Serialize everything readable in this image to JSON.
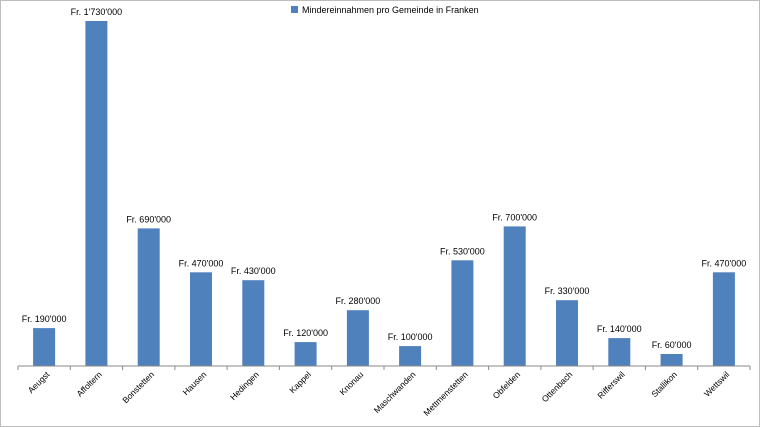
{
  "chart_data": {
    "type": "bar",
    "categories": [
      "Aeugst",
      "Affoltern",
      "Bonstetten",
      "Hausen",
      "Hedingen",
      "Kappel",
      "Knonau",
      "Maschwanden",
      "Mettmenstetten",
      "Obfelden",
      "Ottenbach",
      "Rifferswil",
      "Stallikon",
      "Wettswil"
    ],
    "series": [
      {
        "name": "Mindereinnahmen pro Gemeinde in Franken",
        "values": [
          190000,
          1730000,
          690000,
          470000,
          430000,
          120000,
          280000,
          100000,
          530000,
          700000,
          330000,
          140000,
          60000,
          470000
        ],
        "labels": [
          "Fr. 190'000",
          "Fr. 1'730'000",
          "Fr. 690'000",
          "Fr. 470'000",
          "Fr. 430'000",
          "Fr. 120'000",
          "Fr. 280'000",
          "Fr. 100'000",
          "Fr. 530'000",
          "Fr. 700'000",
          "Fr. 330'000",
          "Fr. 140'000",
          "Fr. 60'000",
          "Fr. 470'000"
        ],
        "color": "#4f81bd"
      }
    ],
    "title": "",
    "xlabel": "",
    "ylabel": "",
    "ylim": [
      0,
      1730000
    ],
    "grid": false,
    "legend": "top-center",
    "axis_color": "#888888"
  }
}
